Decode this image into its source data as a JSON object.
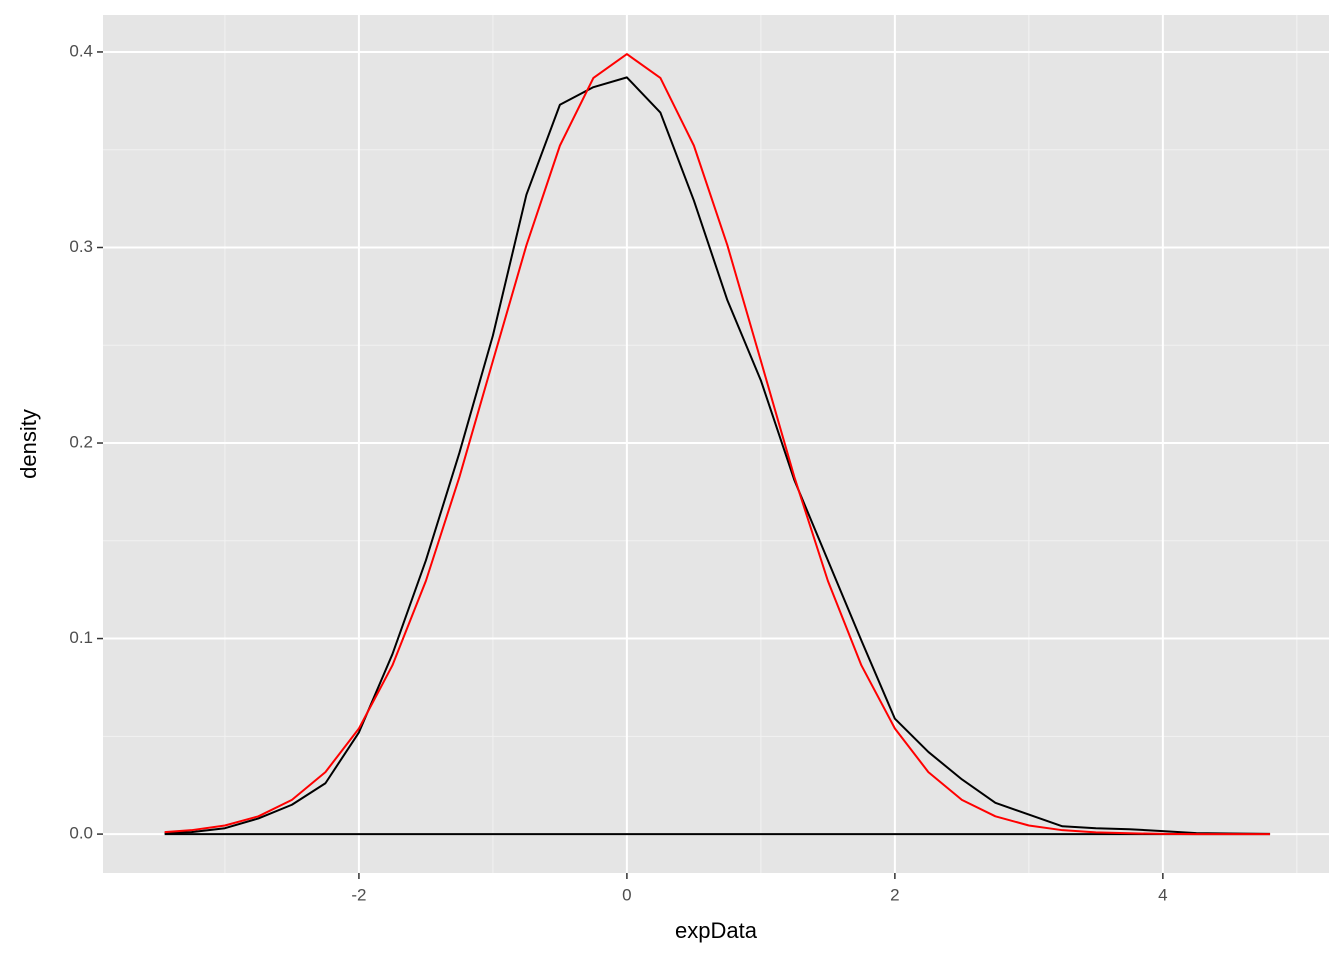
{
  "chart_data": {
    "type": "line",
    "x_label": "expData",
    "y_label": "density",
    "x": [
      -3.45,
      -3.25,
      -3,
      -2.75,
      -2.5,
      -2.25,
      -2,
      -1.75,
      -1.5,
      -1.25,
      -1,
      -0.75,
      -0.5,
      -0.25,
      0,
      0.25,
      0.5,
      0.75,
      1,
      1.25,
      1.5,
      1.75,
      2,
      2.25,
      2.5,
      2.75,
      3,
      3.25,
      3.5,
      3.75,
      4,
      4.25,
      4.5,
      4.8
    ],
    "series": [
      {
        "color": "#000000",
        "values": [
          0.0005,
          0.001,
          0.003,
          0.008,
          0.015,
          0.026,
          0.052,
          0.092,
          0.14,
          0.195,
          0.255,
          0.327,
          0.373,
          0.382,
          0.387,
          0.369,
          0.324,
          0.273,
          0.232,
          0.181,
          0.14,
          0.099,
          0.059,
          0.042,
          0.028,
          0.016,
          0.01,
          0.004,
          0.003,
          0.0025,
          0.0015,
          0.0005,
          0.0003,
          0.0001
        ]
      },
      {
        "color": "#ff0000",
        "values": [
          0.001,
          0.002,
          0.0044,
          0.0091,
          0.0175,
          0.0317,
          0.054,
          0.0863,
          0.1295,
          0.1826,
          0.242,
          0.3011,
          0.3521,
          0.3867,
          0.3989,
          0.3867,
          0.3521,
          0.3011,
          0.242,
          0.1826,
          0.1295,
          0.0863,
          0.054,
          0.0317,
          0.0175,
          0.0091,
          0.0044,
          0.002,
          0.0009,
          0.0004,
          0.0001,
          0.0,
          0.0,
          0.0
        ]
      }
    ],
    "xlim": [
      -3.91,
      5.24
    ],
    "xticks": [
      -2,
      0,
      2,
      4
    ],
    "ylim": [
      -0.0199,
      0.4189
    ],
    "yticks": [
      {
        "value": 0,
        "label": "0.0"
      },
      {
        "value": 0.1,
        "label": "0.1"
      },
      {
        "value": 0.2,
        "label": "0.2"
      },
      {
        "value": 0.3,
        "label": "0.3"
      },
      {
        "value": 0.4,
        "label": "0.4"
      }
    ],
    "grid": true
  }
}
